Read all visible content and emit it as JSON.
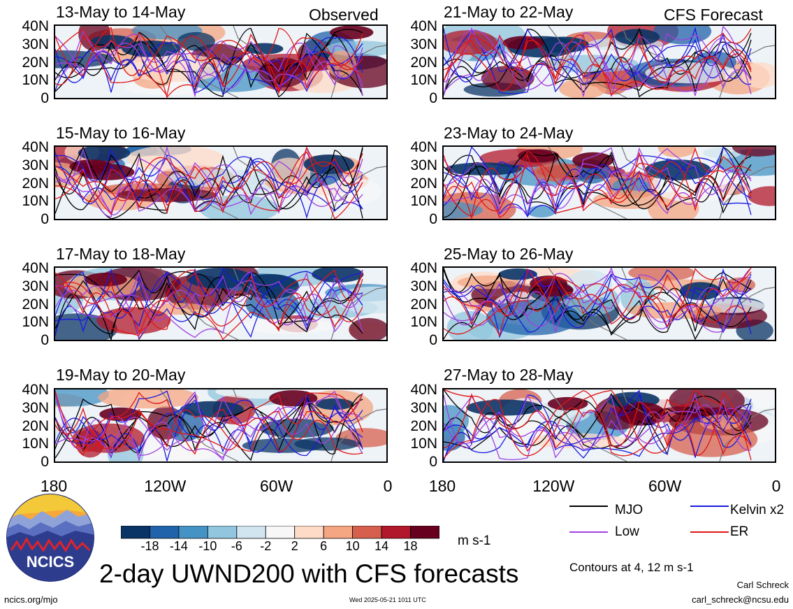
{
  "panels": {
    "observed_label": "Observed",
    "forecast_label": "CFS Forecast",
    "left_titles": [
      "13-May to 14-May",
      "15-May to 16-May",
      "17-May to 18-May",
      "19-May to 20-May"
    ],
    "right_titles": [
      "21-May to 22-May",
      "23-May to 24-May",
      "25-May to 26-May",
      "27-May to 28-May"
    ]
  },
  "axes": {
    "lat_labels": [
      "40N",
      "30N",
      "20N",
      "10N",
      "0"
    ],
    "lon_labels": [
      "180",
      "120W",
      "60W",
      "0"
    ]
  },
  "legend": {
    "mjo": "MJO",
    "kelvin": "Kelvin x2",
    "low": "Low",
    "er": "ER",
    "colors": {
      "mjo": "#000000",
      "kelvin": "#1a1adf",
      "low": "#a040e0",
      "er": "#e01515"
    },
    "contours_note": "Contours at 4, 12 m s-1"
  },
  "colorbar": {
    "ticks": [
      "-18",
      "-14",
      "-10",
      "-6",
      "-2",
      "2",
      "6",
      "10",
      "14",
      "18"
    ],
    "units": "m s-1",
    "colors": [
      "#0b3466",
      "#2163ab",
      "#4593c4",
      "#92c5de",
      "#d1e5f0",
      "#f7f7f7",
      "#fddbc7",
      "#f4a582",
      "#d6604d",
      "#b2182b",
      "#67001f"
    ]
  },
  "footer": {
    "title": "2-day UWND200 with CFS forecasts",
    "website": "ncics.org/mjo",
    "timestamp": "Wed 2025-05-21 1011 UTC",
    "author": "Carl Schreck",
    "email": "carl_schreck@ncsu.edu",
    "logo_text": "NCICS"
  }
}
